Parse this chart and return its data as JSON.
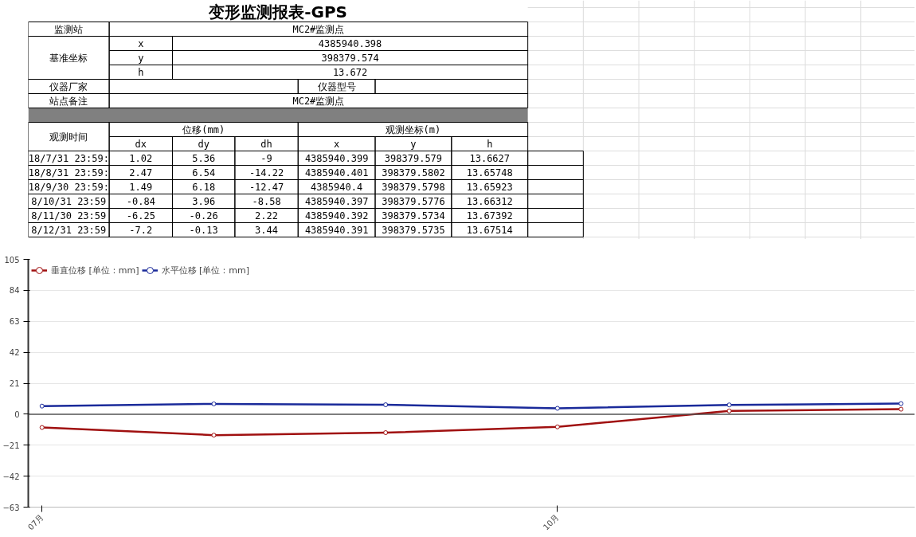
{
  "chart_data": [
    {
      "type": "other",
      "title": "变形监测报表-GPS",
      "annotations": [
        "监测站",
        "MC2#监测点",
        "基准坐标",
        "x",
        "4385940.398",
        "y",
        "398379.574",
        "h",
        "13.672",
        "仪器厂家",
        "仪器型号",
        "站点备注",
        "MC2#监测点",
        "观测时间",
        "位移(mm)",
        "观测坐标(m)",
        "dx",
        "dy",
        "dh",
        "x",
        "y",
        "h",
        "18/7/31 23:59:",
        "1.02",
        "5.36",
        "-9",
        "4385940.399",
        "398379.579",
        "13.6627",
        "18/8/31 23:59:",
        "2.47",
        "6.54",
        "-14.22",
        "4385940.401",
        "398379.5802",
        "13.65748",
        "18/9/30 23:59:",
        "1.49",
        "6.18",
        "-12.47",
        "4385940.4",
        "398379.5798",
        "13.65923",
        "8/10/31 23:59",
        "-0.84",
        "3.96",
        "-8.58",
        "4385940.397",
        "398379.5776",
        "13.66312",
        "8/11/30 23:59",
        "-6.25",
        "-0.26",
        "2.22",
        "4385940.392",
        "398379.5734",
        "13.67392",
        "8/12/31 23:59",
        "-7.2",
        "-0.13",
        "3.44",
        "4385940.391",
        "398379.5735",
        "13.67514"
      ]
    },
    {
      "type": "line",
      "categories": [
        "07月",
        null,
        null,
        "10月",
        null,
        null
      ],
      "ylim": [
        -63,
        105
      ],
      "yticks": [
        -63,
        -42,
        -21,
        0,
        21,
        42,
        63,
        84,
        105
      ],
      "grid": "y",
      "legend": "top left",
      "marker": "circle",
      "line_style": "solid",
      "ref_lines": [
        {
          "axis": "y",
          "value": 0,
          "color": "#555555"
        }
      ],
      "series": [
        {
          "name": "垂直位移 [单位：mm]",
          "color": "#a01010",
          "values": [
            -9,
            -14.2,
            -12.5,
            -8.6,
            2.2,
            3.4
          ]
        },
        {
          "name": "水平位移 [单位：mm]",
          "color": "#1a2a9a",
          "values": [
            5.5,
            7.0,
            6.4,
            4.0,
            6.3,
            7.2
          ]
        }
      ]
    }
  ]
}
